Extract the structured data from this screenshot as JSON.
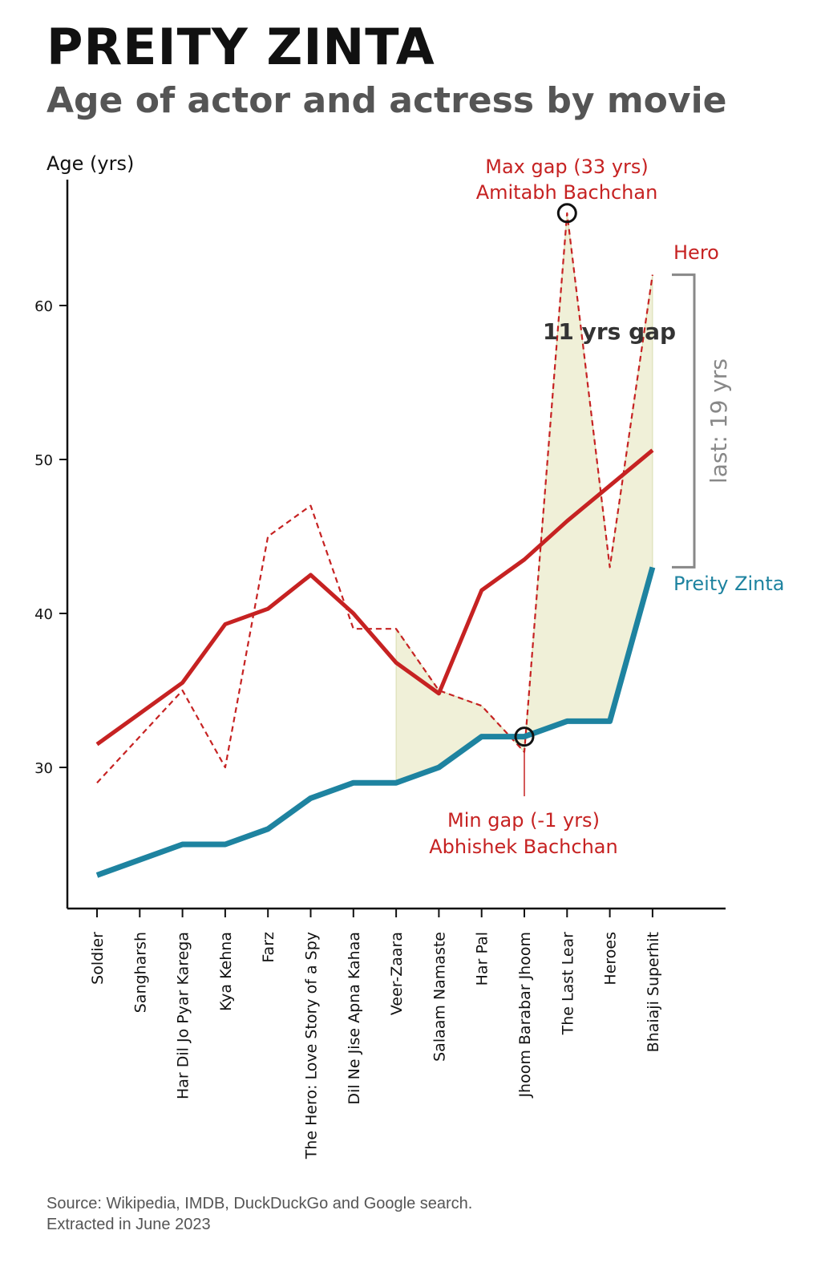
{
  "header": {
    "title": "PREITY ZINTA",
    "subtitle": "Age of actor and actress by movie"
  },
  "chart_data": {
    "type": "line",
    "ylabel": "Age (yrs)",
    "xlabel": "",
    "ylim": [
      21,
      68
    ],
    "yticks": [
      30,
      40,
      50,
      60
    ],
    "grid": false,
    "categories": [
      "Soldier",
      "Sangharsh",
      "Har Dil Jo Pyar Karega",
      "Kya Kehna",
      "Farz",
      "The Hero: Love Story of a Spy",
      "Dil Ne Jise Apna Kahaa",
      "Veer-Zaara",
      "Salaam Namaste",
      "Har Pal",
      "Jhoom Barabar Jhoom",
      "The Last Lear",
      "Heroes",
      "Bhaiaji Superhit"
    ],
    "series": [
      {
        "name": "Hero",
        "role": "actor_age",
        "style": "dashed",
        "color": "#c62222",
        "values": [
          29,
          32,
          35,
          30,
          45,
          47,
          39,
          39,
          35,
          34,
          31,
          66,
          43,
          62
        ]
      },
      {
        "name": "",
        "role": "actor_trend",
        "style": "solid",
        "color": "#c62222",
        "values": [
          31.5,
          33.5,
          35.5,
          39.3,
          40.3,
          42.5,
          40,
          36.8,
          34.8,
          41.5,
          43.5,
          46,
          48.3,
          50.6
        ]
      },
      {
        "name": "Preity Zinta",
        "role": "actress_age",
        "style": "solid",
        "color": "#1e83a0",
        "values": [
          23,
          24,
          25,
          25,
          26,
          28,
          29,
          29,
          30,
          32,
          32,
          33,
          33,
          43
        ]
      }
    ],
    "gap_fill": {
      "color": "#f0f0d8",
      "from_index": 7,
      "to_index": 13
    },
    "annotations": {
      "max_gap": {
        "index": 11,
        "line1": "Max gap (33 yrs)",
        "line2": "Amitabh Bachchan"
      },
      "min_gap": {
        "index": 10,
        "line1": "Min gap (-1 yrs)",
        "line2": "Abhishek Bachchan"
      },
      "gap_label": "11 yrs gap",
      "last_label": "last: 19 yrs",
      "hero_label": "Hero",
      "actress_label": "Preity Zinta"
    },
    "colors": {
      "hero": "#c62222",
      "actress": "#1e83a0",
      "fill": "#f0f0d8",
      "bracket": "#888888",
      "axis": "#111111"
    }
  },
  "footer": {
    "source_line1": "Source: Wikipedia, IMDB, DuckDuckGo and Google search.",
    "source_line2": "Extracted in June 2023"
  }
}
